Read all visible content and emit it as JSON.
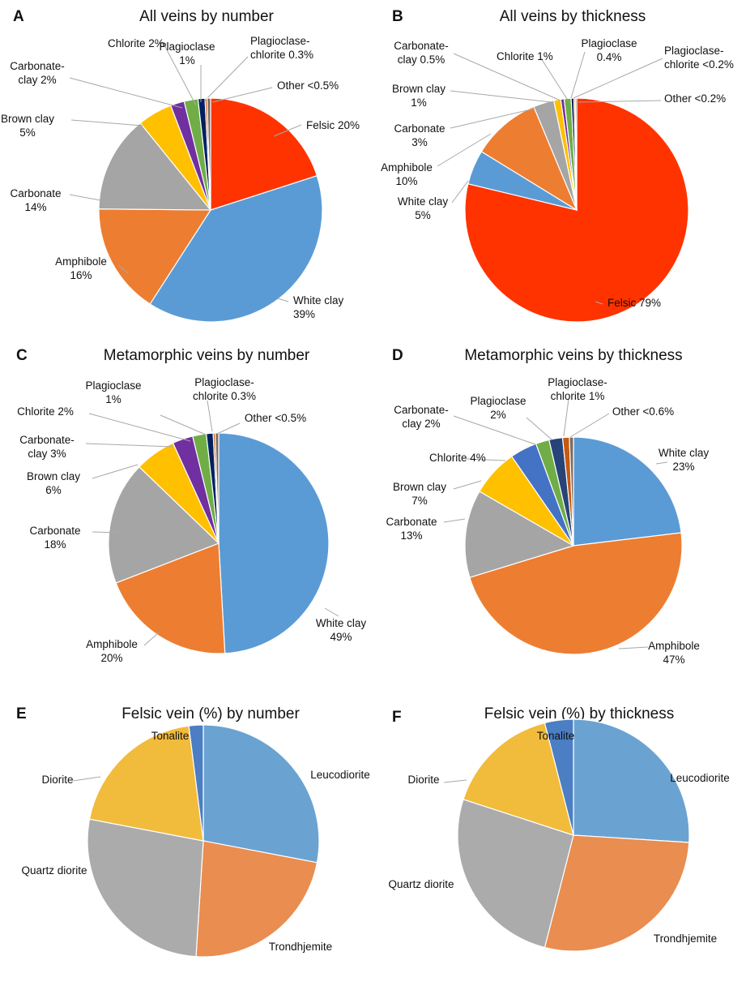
{
  "chart_data": [
    {
      "type": "pie",
      "letter": "A",
      "title": "All veins by number",
      "slices": [
        {
          "name": "Felsic",
          "value": 20,
          "label": [
            "Felsic 20%"
          ],
          "color": "#ff3300"
        },
        {
          "name": "White clay",
          "value": 39,
          "label": [
            "White clay",
            "39%"
          ],
          "color": "#5b9bd5"
        },
        {
          "name": "Amphibole",
          "value": 16,
          "label": [
            "Amphibole",
            "16%"
          ],
          "color": "#ed7d31"
        },
        {
          "name": "Carbonate",
          "value": 14,
          "label": [
            "Carbonate",
            "14%"
          ],
          "color": "#a5a5a5"
        },
        {
          "name": "Brown clay",
          "value": 5,
          "label": [
            "Brown clay",
            "5%"
          ],
          "color": "#ffc000"
        },
        {
          "name": "Carbonate-clay",
          "value": 2,
          "label": [
            "Carbonate-",
            "clay 2%"
          ],
          "color": "#7030a0"
        },
        {
          "name": "Chlorite",
          "value": 2,
          "label": [
            "Chlorite 2%"
          ],
          "color": "#70ad47"
        },
        {
          "name": "Plagioclase",
          "value": 1,
          "label": [
            "Plagioclase",
            "1%"
          ],
          "color": "#002060"
        },
        {
          "name": "Plagioclase-chlorite",
          "value": 0.3,
          "label": [
            "Plagioclase-",
            "chlorite 0.3%"
          ],
          "color": "#c55a11"
        },
        {
          "name": "Other",
          "value": 0.5,
          "label": [
            "Other <0.5%"
          ],
          "color": "#7f6a5a"
        }
      ]
    },
    {
      "type": "pie",
      "letter": "B",
      "title": "All veins by thickness",
      "slices": [
        {
          "name": "Felsic",
          "value": 79,
          "label": [
            "Felsic 79%"
          ],
          "color": "#ff3300"
        },
        {
          "name": "White clay",
          "value": 5,
          "label": [
            "White clay",
            "5%"
          ],
          "color": "#5b9bd5"
        },
        {
          "name": "Amphibole",
          "value": 10,
          "label": [
            "Amphibole",
            "10%"
          ],
          "color": "#ed7d31"
        },
        {
          "name": "Carbonate",
          "value": 3,
          "label": [
            "Carbonate",
            "3%"
          ],
          "color": "#a5a5a5"
        },
        {
          "name": "Brown clay",
          "value": 1,
          "label": [
            "Brown clay",
            "1%"
          ],
          "color": "#ffc000"
        },
        {
          "name": "Carbonate-clay",
          "value": 0.5,
          "label": [
            "Carbonate-",
            "clay 0.5%"
          ],
          "color": "#7030a0"
        },
        {
          "name": "Chlorite",
          "value": 1,
          "label": [
            "Chlorite 1%"
          ],
          "color": "#70ad47"
        },
        {
          "name": "Plagioclase",
          "value": 0.4,
          "label": [
            "Plagioclase",
            "0.4%"
          ],
          "color": "#002060"
        },
        {
          "name": "Plagioclase-chlorite",
          "value": 0.2,
          "label": [
            "Plagioclase-",
            "chlorite <0.2%"
          ],
          "color": "#c55a11"
        },
        {
          "name": "Other",
          "value": 0.2,
          "label": [
            "Other <0.2%"
          ],
          "color": "#7f6a5a"
        }
      ]
    },
    {
      "type": "pie",
      "letter": "C",
      "title": "Metamorphic veins by number",
      "slices": [
        {
          "name": "White clay",
          "value": 49,
          "label": [
            "White clay",
            "49%"
          ],
          "color": "#5b9bd5"
        },
        {
          "name": "Amphibole",
          "value": 20,
          "label": [
            "Amphibole",
            "20%"
          ],
          "color": "#ed7d31"
        },
        {
          "name": "Carbonate",
          "value": 18,
          "label": [
            "Carbonate",
            "18%"
          ],
          "color": "#a5a5a5"
        },
        {
          "name": "Brown clay",
          "value": 6,
          "label": [
            "Brown clay",
            "6%"
          ],
          "color": "#ffc000"
        },
        {
          "name": "Carbonate-clay",
          "value": 3,
          "label": [
            "Carbonate-",
            "clay 3%"
          ],
          "color": "#7030a0"
        },
        {
          "name": "Chlorite",
          "value": 2,
          "label": [
            "Chlorite 2%"
          ],
          "color": "#70ad47"
        },
        {
          "name": "Plagioclase",
          "value": 1,
          "label": [
            "Plagioclase",
            "1%"
          ],
          "color": "#002060"
        },
        {
          "name": "Plagioclase-chlorite",
          "value": 0.3,
          "label": [
            "Plagioclase-",
            "chlorite 0.3%"
          ],
          "color": "#c55a11"
        },
        {
          "name": "Other",
          "value": 0.5,
          "label": [
            "Other <0.5%"
          ],
          "color": "#7f6a5a"
        }
      ]
    },
    {
      "type": "pie",
      "letter": "D",
      "title": "Metamorphic veins by thickness",
      "slices": [
        {
          "name": "White clay",
          "value": 23,
          "label": [
            "White clay",
            "23%"
          ],
          "color": "#5b9bd5"
        },
        {
          "name": "Amphibole",
          "value": 47,
          "label": [
            "Amphibole",
            "47%"
          ],
          "color": "#ed7d31"
        },
        {
          "name": "Carbonate",
          "value": 13,
          "label": [
            "Carbonate",
            "13%"
          ],
          "color": "#a5a5a5"
        },
        {
          "name": "Brown clay",
          "value": 7,
          "label": [
            "Brown clay",
            "7%"
          ],
          "color": "#ffc000"
        },
        {
          "name": "Chlorite",
          "value": 4,
          "label": [
            "Chlorite 4%"
          ],
          "color": "#4472c4"
        },
        {
          "name": "Carbonate-clay",
          "value": 2,
          "label": [
            "Carbonate-",
            "clay 2%"
          ],
          "color": "#70ad47"
        },
        {
          "name": "Plagioclase",
          "value": 2,
          "label": [
            "Plagioclase",
            "2%"
          ],
          "color": "#264478"
        },
        {
          "name": "Plagioclase-chlorite",
          "value": 1,
          "label": [
            "Plagioclase-",
            "chlorite 1%"
          ],
          "color": "#c55a11"
        },
        {
          "name": "Other",
          "value": 0.6,
          "label": [
            "Other <0.6%"
          ],
          "color": "#7f6a5a"
        }
      ]
    },
    {
      "type": "pie",
      "letter": "E",
      "title": "Felsic vein (%) by number",
      "slices": [
        {
          "name": "Leucodiorite",
          "value": 28,
          "label": [
            "Leucodiorite"
          ],
          "color": "#6aa3d2"
        },
        {
          "name": "Trondhjemite",
          "value": 23,
          "label": [
            "Trondhjemite"
          ],
          "color": "#e98d50"
        },
        {
          "name": "Quartz diorite",
          "value": 27,
          "label": [
            "Quartz diorite"
          ],
          "color": "#ababab"
        },
        {
          "name": "Diorite",
          "value": 20,
          "label": [
            "Diorite"
          ],
          "color": "#f1bb3c"
        },
        {
          "name": "Tonalite",
          "value": 2,
          "label": [
            "Tonalite"
          ],
          "color": "#4b7ec3"
        }
      ]
    },
    {
      "type": "pie",
      "letter": "F",
      "title": "Felsic vein (%) by thickness",
      "slices": [
        {
          "name": "Leucodiorite",
          "value": 26,
          "label": [
            "Leucodiorite"
          ],
          "color": "#6aa3d2"
        },
        {
          "name": "Trondhjemite",
          "value": 28,
          "label": [
            "Trondhjemite"
          ],
          "color": "#e98d50"
        },
        {
          "name": "Quartz diorite",
          "value": 26,
          "label": [
            "Quartz diorite"
          ],
          "color": "#ababab"
        },
        {
          "name": "Diorite",
          "value": 16,
          "label": [
            "Diorite"
          ],
          "color": "#f1bb3c"
        },
        {
          "name": "Tonalite",
          "value": 4,
          "label": [
            "Tonalite"
          ],
          "color": "#4b7ec3"
        }
      ]
    }
  ]
}
